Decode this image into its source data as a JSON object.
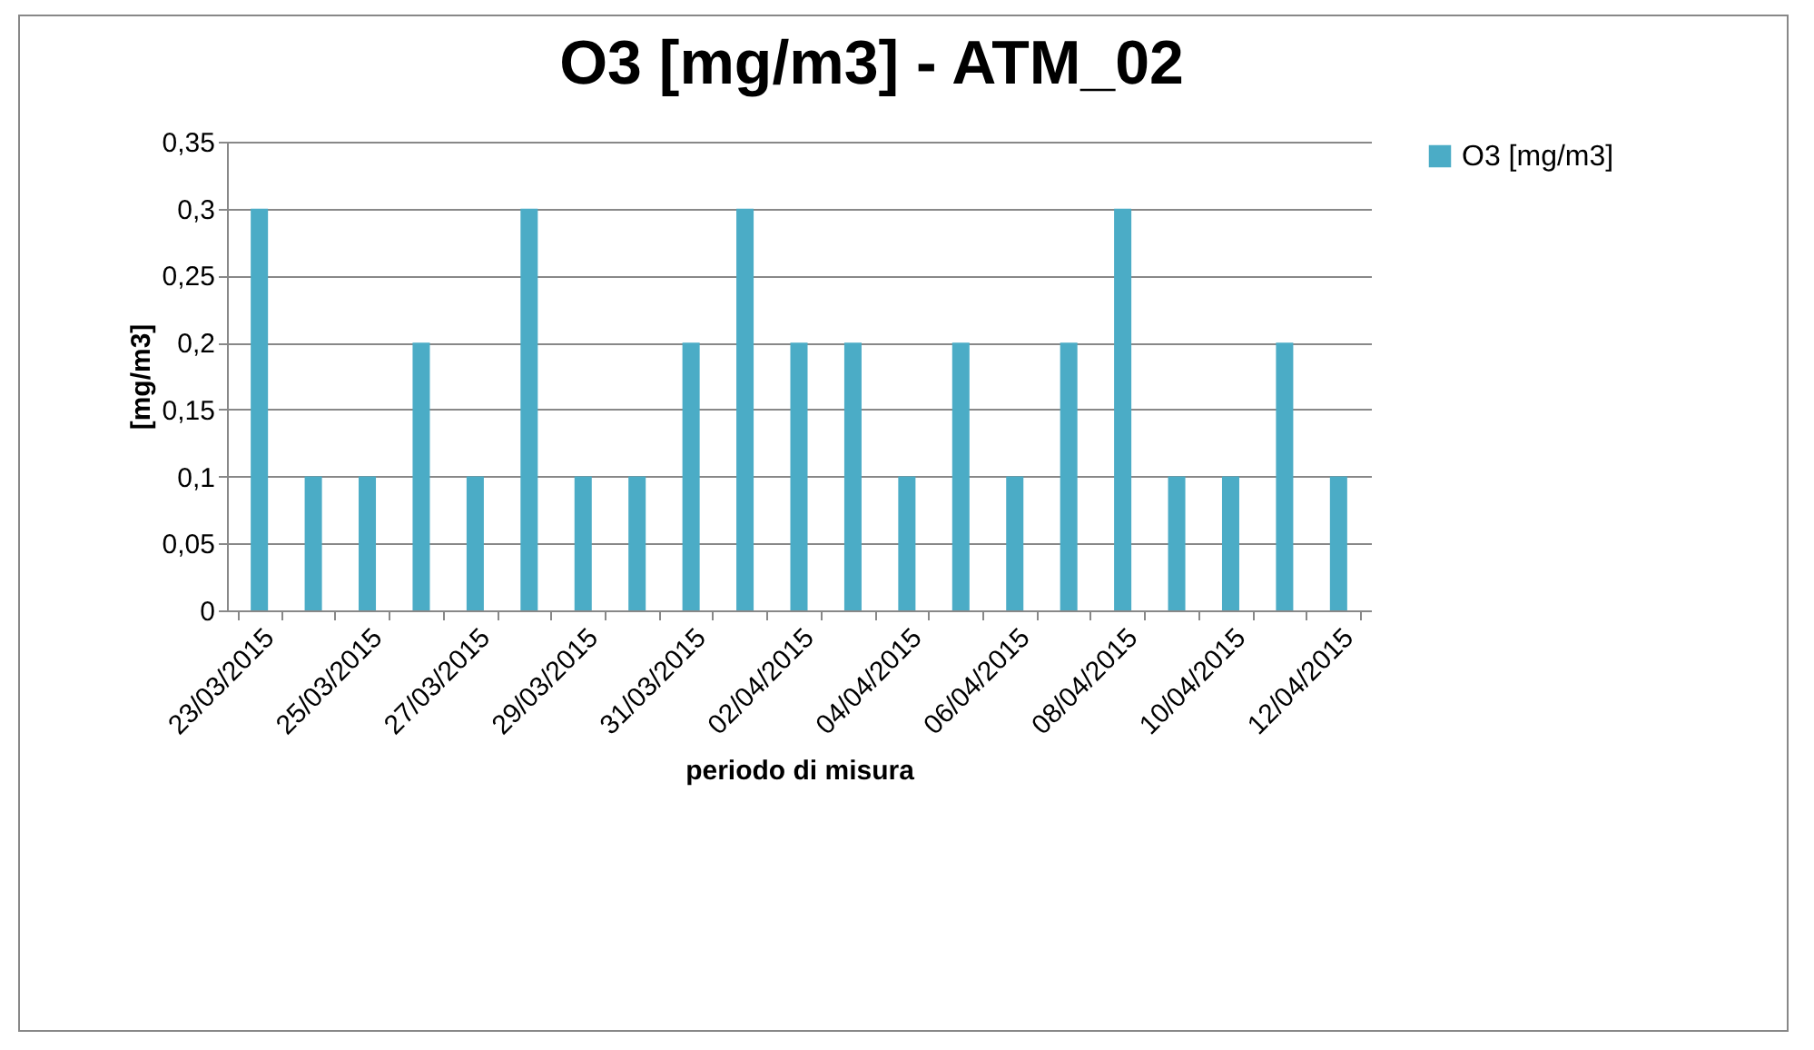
{
  "chart_data": {
    "type": "bar",
    "title": "O3 [mg/m3] - ATM_02",
    "xlabel": "periodo di misura",
    "ylabel": "[mg/m3]",
    "categories": [
      "23/03/2015",
      null,
      "25/03/2015",
      null,
      "27/03/2015",
      null,
      "29/03/2015",
      null,
      "31/03/2015",
      null,
      "02/04/2015",
      null,
      "04/04/2015",
      null,
      "06/04/2015",
      null,
      "08/04/2015",
      null,
      "10/04/2015",
      null,
      "12/04/2015"
    ],
    "series": [
      {
        "name": "O3 [mg/m3]",
        "color": "#4bacc6",
        "values": [
          0.3,
          0.1,
          0.1,
          0.2,
          0.1,
          0.3,
          0.1,
          0.1,
          0.2,
          0.3,
          0.2,
          0.2,
          0.1,
          0.2,
          0.1,
          0.2,
          0.3,
          0.1,
          0.1,
          0.2,
          0.1
        ]
      }
    ],
    "ylim": [
      0,
      0.35
    ],
    "yticks": [
      {
        "value": 0,
        "label": "0"
      },
      {
        "value": 0.05,
        "label": "0,05"
      },
      {
        "value": 0.1,
        "label": "0,1"
      },
      {
        "value": 0.15,
        "label": "0,15"
      },
      {
        "value": 0.2,
        "label": "0,2"
      },
      {
        "value": 0.25,
        "label": "0,25"
      },
      {
        "value": 0.3,
        "label": "0,3"
      },
      {
        "value": 0.35,
        "label": "0,35"
      }
    ],
    "grid": "y",
    "legend": "right"
  }
}
